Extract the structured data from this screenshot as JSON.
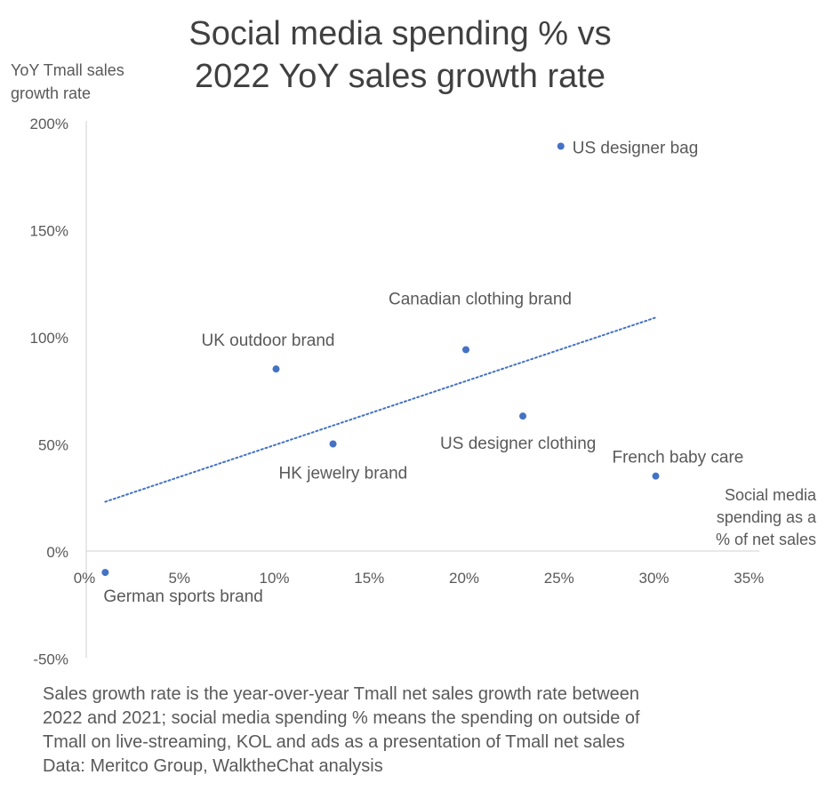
{
  "chart_data": {
    "type": "scatter",
    "title_lines": [
      "Social media spending % vs",
      "2022 YoY sales growth rate"
    ],
    "ylabel_lines": [
      "YoY Tmall sales",
      "growth rate"
    ],
    "xlabel_lines": [
      "Social media",
      "spending as a",
      "% of net sales"
    ],
    "xlim": [
      0,
      35
    ],
    "ylim": [
      -50,
      200
    ],
    "x_ticks": [
      0,
      5,
      10,
      15,
      20,
      25,
      30,
      35
    ],
    "x_tick_labels": [
      "0%",
      "5%",
      "10%",
      "15%",
      "20%",
      "25%",
      "30%",
      "35%"
    ],
    "y_ticks": [
      -50,
      0,
      50,
      100,
      150,
      200
    ],
    "y_tick_labels": [
      "-50%",
      "0%",
      "50%",
      "100%",
      "150%",
      "200%"
    ],
    "points": [
      {
        "label": "German sports brand",
        "x": 1,
        "y": -10
      },
      {
        "label": "UK outdoor brand",
        "x": 10,
        "y": 85
      },
      {
        "label": "HK jewelry brand",
        "x": 13,
        "y": 50
      },
      {
        "label": "Canadian clothing brand",
        "x": 20,
        "y": 94
      },
      {
        "label": "US designer clothing",
        "x": 23,
        "y": 63
      },
      {
        "label": "US designer bag",
        "x": 25,
        "y": 189
      },
      {
        "label": "French baby care",
        "x": 30,
        "y": 35
      }
    ],
    "trendline": {
      "style": "dotted",
      "start": {
        "x": 1,
        "y": 23
      },
      "end": {
        "x": 30,
        "y": 109
      }
    },
    "grid": false,
    "legend": "none",
    "colors": {
      "points": "#4472C4",
      "trendline": "#4472C4",
      "axis": "#D9D9D9",
      "text": "#595959"
    }
  },
  "footnote_lines": [
    "Sales growth rate is the year-over-year Tmall net sales growth rate between",
    "2022 and 2021; social media spending % means the spending on outside of",
    "Tmall on live-streaming, KOL and ads as a presentation of Tmall net sales",
    "Data:  Meritco Group, WalktheChat analysis"
  ]
}
